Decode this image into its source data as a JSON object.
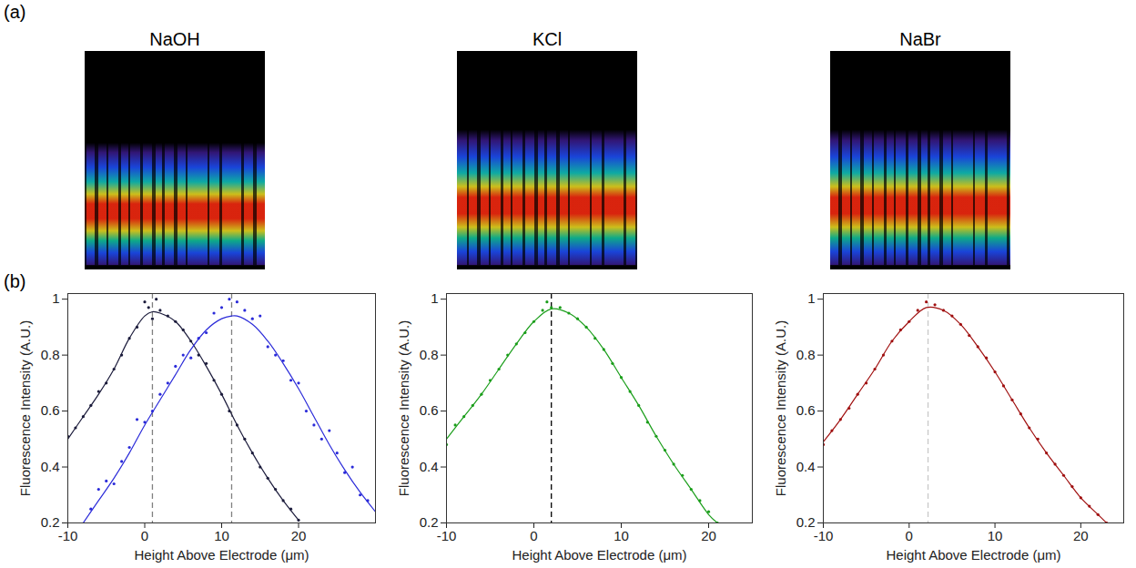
{
  "panel_labels": [
    "(a)",
    "(b)"
  ],
  "images": [
    {
      "title": "NaOH"
    },
    {
      "title": "KCl"
    },
    {
      "title": "NaBr"
    }
  ],
  "chart_data": [
    {
      "type": "scatter",
      "xlabel": "Height Above Electrode (μm)",
      "ylabel": "Fluorescence Intensity (A.U.)",
      "xlim": [
        -10,
        30
      ],
      "xticks": [
        -10,
        0,
        10,
        20
      ],
      "ylim": [
        0.2,
        1.02
      ],
      "yticks": [
        0.2,
        0.4,
        0.6,
        0.8,
        1
      ],
      "grid": false,
      "series": [
        {
          "type": "scatter",
          "marker": "dot",
          "color": "#1c1c3c",
          "x": [
            -10,
            -9,
            -8,
            -7,
            -6,
            -5,
            -4,
            -3,
            -2,
            -1,
            0,
            0.5,
            1,
            1.5,
            2,
            3,
            4,
            5,
            6,
            7,
            8,
            9,
            10,
            11,
            12,
            13,
            14,
            15,
            16,
            17,
            18,
            19,
            20
          ],
          "values": [
            0.51,
            0.54,
            0.58,
            0.62,
            0.67,
            0.7,
            0.75,
            0.8,
            0.86,
            0.9,
            0.99,
            0.97,
            0.93,
            1.0,
            0.96,
            0.94,
            0.92,
            0.89,
            0.85,
            0.8,
            0.77,
            0.71,
            0.66,
            0.6,
            0.55,
            0.5,
            0.45,
            0.4,
            0.36,
            0.32,
            0.28,
            0.25,
            0.21
          ]
        },
        {
          "type": "line",
          "line_style": "solid",
          "color": "#1c1c3c",
          "x": [
            -10,
            -8,
            -6,
            -4,
            -2,
            0,
            1,
            2,
            4,
            6,
            8,
            10,
            12,
            14,
            16,
            18,
            20
          ],
          "values": [
            0.5,
            0.58,
            0.66,
            0.75,
            0.86,
            0.94,
            0.955,
            0.95,
            0.92,
            0.85,
            0.76,
            0.66,
            0.55,
            0.45,
            0.36,
            0.28,
            0.21
          ]
        },
        {
          "type": "scatter",
          "marker": "dot",
          "color": "#2b2bd9",
          "x": [
            -7,
            -6,
            -5,
            -4,
            -3,
            -2,
            -1,
            0,
            1,
            2,
            3,
            4,
            5,
            6,
            7,
            8,
            9,
            10,
            11,
            12,
            13,
            14,
            15,
            16,
            17,
            18,
            19,
            20,
            21,
            22,
            23,
            24,
            25,
            26,
            27,
            28,
            29
          ],
          "values": [
            0.25,
            0.32,
            0.35,
            0.34,
            0.42,
            0.47,
            0.57,
            0.56,
            0.6,
            0.66,
            0.7,
            0.76,
            0.8,
            0.79,
            0.86,
            0.88,
            0.95,
            0.97,
            1.0,
            0.99,
            0.96,
            0.93,
            0.94,
            0.83,
            0.8,
            0.78,
            0.71,
            0.7,
            0.6,
            0.55,
            0.5,
            0.53,
            0.45,
            0.38,
            0.4,
            0.3,
            0.28
          ]
        },
        {
          "type": "line",
          "line_style": "solid",
          "color": "#2b2bd9",
          "x": [
            -8,
            -6,
            -4,
            -2,
            0,
            2,
            4,
            6,
            8,
            10,
            11.3,
            12,
            14,
            16,
            18,
            20,
            22,
            24,
            26,
            28,
            30
          ],
          "values": [
            0.2,
            0.28,
            0.36,
            0.45,
            0.55,
            0.64,
            0.73,
            0.82,
            0.89,
            0.93,
            0.94,
            0.94,
            0.91,
            0.85,
            0.77,
            0.68,
            0.58,
            0.48,
            0.39,
            0.31,
            0.24
          ]
        }
      ],
      "vlines": [
        {
          "x": 1,
          "color": "#808080",
          "line_style": "dashed"
        },
        {
          "x": 11.3,
          "color": "#808080",
          "line_style": "dashed"
        }
      ]
    },
    {
      "type": "scatter",
      "xlabel": "Height Above Electrode (μm)",
      "ylabel": "Fluorescence Intensity (A.U.)",
      "xlim": [
        -10,
        25
      ],
      "xticks": [
        -10,
        0,
        10,
        20
      ],
      "ylim": [
        0.2,
        1.02
      ],
      "yticks": [
        0.2,
        0.4,
        0.6,
        0.8,
        1
      ],
      "grid": false,
      "series": [
        {
          "type": "scatter",
          "marker": "dot",
          "color": "#1b9e1b",
          "x": [
            -10,
            -9,
            -8,
            -7,
            -6,
            -5,
            -4,
            -3,
            -2,
            -1,
            0,
            1,
            1.5,
            2,
            3,
            4,
            5,
            6,
            7,
            8,
            9,
            10,
            11,
            12,
            13,
            14,
            15,
            16,
            17,
            18,
            19,
            20,
            21
          ],
          "values": [
            0.48,
            0.55,
            0.58,
            0.62,
            0.66,
            0.71,
            0.75,
            0.8,
            0.84,
            0.88,
            0.92,
            0.96,
            0.99,
            0.97,
            0.97,
            0.95,
            0.93,
            0.9,
            0.86,
            0.82,
            0.77,
            0.72,
            0.67,
            0.62,
            0.56,
            0.51,
            0.46,
            0.41,
            0.37,
            0.32,
            0.28,
            0.24,
            0.2
          ]
        },
        {
          "type": "line",
          "line_style": "solid",
          "color": "#1b9e1b",
          "x": [
            -10,
            -8,
            -6,
            -4,
            -2,
            0,
            2,
            4,
            6,
            8,
            10,
            12,
            14,
            16,
            18,
            20,
            21
          ],
          "values": [
            0.5,
            0.58,
            0.66,
            0.75,
            0.84,
            0.92,
            0.965,
            0.95,
            0.9,
            0.82,
            0.72,
            0.62,
            0.51,
            0.41,
            0.32,
            0.23,
            0.2
          ]
        }
      ],
      "vlines": [
        {
          "x": 2,
          "color": "#000000",
          "line_style": "dashed"
        }
      ]
    },
    {
      "type": "scatter",
      "xlabel": "Height Above Electrode (μm)",
      "ylabel": "Fluorescence Intensity (A.U.)",
      "xlim": [
        -10,
        25
      ],
      "xticks": [
        -10,
        0,
        10,
        20
      ],
      "ylim": [
        0.2,
        1.02
      ],
      "yticks": [
        0.2,
        0.4,
        0.6,
        0.8,
        1
      ],
      "grid": false,
      "series": [
        {
          "type": "scatter",
          "marker": "dot",
          "color": "#a01010",
          "x": [
            -10,
            -9,
            -8,
            -7,
            -6,
            -5,
            -4,
            -3,
            -2,
            -1,
            0,
            1,
            2,
            3,
            4,
            5,
            6,
            7,
            8,
            9,
            10,
            11,
            12,
            13,
            14,
            15,
            16,
            17,
            18,
            19,
            20,
            21,
            22,
            23
          ],
          "values": [
            0.48,
            0.53,
            0.57,
            0.61,
            0.66,
            0.7,
            0.75,
            0.8,
            0.85,
            0.89,
            0.92,
            0.96,
            0.99,
            0.98,
            0.96,
            0.94,
            0.91,
            0.87,
            0.83,
            0.79,
            0.74,
            0.69,
            0.64,
            0.59,
            0.54,
            0.5,
            0.45,
            0.41,
            0.37,
            0.33,
            0.29,
            0.26,
            0.23,
            0.2
          ]
        },
        {
          "type": "line",
          "line_style": "solid",
          "color": "#a01010",
          "x": [
            -10,
            -8,
            -6,
            -4,
            -2,
            0,
            2,
            4,
            6,
            8,
            10,
            12,
            14,
            16,
            18,
            20,
            22,
            23
          ],
          "values": [
            0.49,
            0.57,
            0.66,
            0.75,
            0.85,
            0.92,
            0.97,
            0.96,
            0.91,
            0.83,
            0.74,
            0.64,
            0.54,
            0.45,
            0.37,
            0.29,
            0.23,
            0.2
          ]
        }
      ],
      "vlines": [
        {
          "x": 2.2,
          "color": "#c8c8c8",
          "line_style": "dashed"
        }
      ]
    }
  ]
}
